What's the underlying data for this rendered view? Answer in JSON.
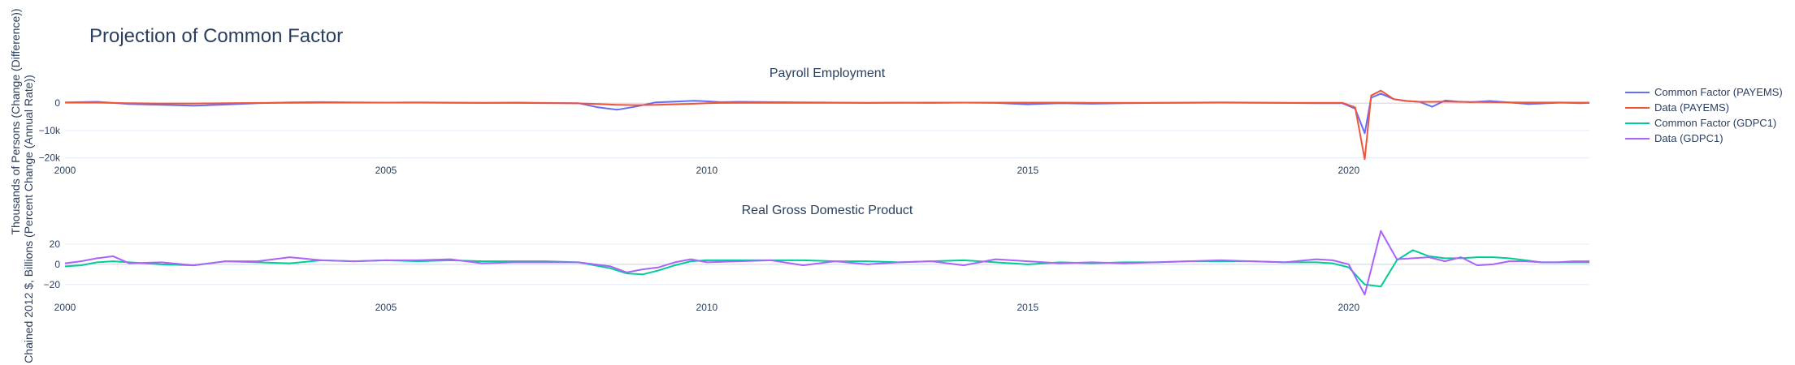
{
  "figure": {
    "title": "Projection of Common Factor"
  },
  "colors": {
    "cf_payems": "#636efa",
    "data_payems": "#ef553b",
    "cf_gdpc1": "#00cc96",
    "data_gdpc1": "#ab63fa"
  },
  "legend": {
    "placement": "right",
    "items": [
      {
        "label": "Common Factor (PAYEMS)",
        "color": "#636efa"
      },
      {
        "label": "Data (PAYEMS)",
        "color": "#ef553b"
      },
      {
        "label": "Common Factor (GDPC1)",
        "color": "#00cc96"
      },
      {
        "label": "Data (GDPC1)",
        "color": "#ab63fa"
      }
    ]
  },
  "chart_data": [
    {
      "type": "line",
      "title": "Payroll Employment",
      "ylabel": "Thousands of Persons (Change (Difference))",
      "xlabel": "",
      "xlim": [
        2000.0,
        2023.75
      ],
      "ylim": [
        -21000,
        6000
      ],
      "yticks": [
        {
          "v": 0,
          "label": "0"
        },
        {
          "v": -10000,
          "label": "−10k"
        },
        {
          "v": -20000,
          "label": "−20k"
        }
      ],
      "xticks": [
        {
          "v": 2000,
          "label": "2000"
        },
        {
          "v": 2005,
          "label": "2005"
        },
        {
          "v": 2010,
          "label": "2010"
        },
        {
          "v": 2015,
          "label": "2015"
        },
        {
          "v": 2020,
          "label": "2020"
        }
      ],
      "series": [
        {
          "name": "Common Factor (PAYEMS)",
          "color": "#636efa",
          "x": [
            2000.0,
            2000.5,
            2001.0,
            2001.5,
            2002.0,
            2002.5,
            2003.0,
            2003.5,
            2004.0,
            2004.5,
            2005.0,
            2005.5,
            2006.0,
            2006.5,
            2007.0,
            2007.5,
            2008.0,
            2008.3,
            2008.6,
            2008.9,
            2009.2,
            2009.5,
            2009.8,
            2010.0,
            2010.2,
            2010.5,
            2011.0,
            2011.5,
            2012.0,
            2012.5,
            2013.0,
            2013.5,
            2014.0,
            2014.5,
            2015.0,
            2015.5,
            2016.0,
            2016.5,
            2017.0,
            2017.5,
            2018.0,
            2018.5,
            2019.0,
            2019.5,
            2019.9,
            2020.1,
            2020.25,
            2020.35,
            2020.5,
            2020.7,
            2020.9,
            2021.1,
            2021.3,
            2021.5,
            2021.7,
            2021.9,
            2022.2,
            2022.5,
            2022.8,
            2023.0,
            2023.3,
            2023.6,
            2023.75
          ],
          "values": [
            300,
            500,
            -300,
            -600,
            -900,
            -500,
            0,
            300,
            400,
            300,
            200,
            300,
            200,
            100,
            200,
            100,
            0,
            -1500,
            -2400,
            -1200,
            300,
            600,
            900,
            700,
            400,
            500,
            400,
            300,
            200,
            100,
            200,
            100,
            200,
            100,
            -400,
            0,
            -200,
            0,
            100,
            200,
            300,
            200,
            100,
            0,
            0,
            -2000,
            -11000,
            2000,
            3500,
            1500,
            800,
            500,
            -1300,
            1000,
            600,
            400,
            800,
            300,
            -300,
            -100,
            200,
            0,
            100
          ]
        },
        {
          "name": "Data (PAYEMS)",
          "color": "#ef553b",
          "x": [
            2000.0,
            2000.5,
            2001.0,
            2001.5,
            2002.0,
            2002.5,
            2003.0,
            2003.5,
            2004.0,
            2004.5,
            2005.0,
            2005.5,
            2006.0,
            2006.5,
            2007.0,
            2007.5,
            2008.0,
            2008.3,
            2008.6,
            2008.9,
            2009.2,
            2009.5,
            2009.8,
            2010.0,
            2010.2,
            2010.5,
            2011.0,
            2011.5,
            2012.0,
            2012.5,
            2013.0,
            2013.5,
            2014.0,
            2014.5,
            2015.0,
            2015.5,
            2016.0,
            2016.5,
            2017.0,
            2017.5,
            2018.0,
            2018.5,
            2019.0,
            2019.5,
            2019.9,
            2020.1,
            2020.25,
            2020.35,
            2020.5,
            2020.7,
            2020.9,
            2021.1,
            2021.3,
            2021.5,
            2021.7,
            2021.9,
            2022.2,
            2022.5,
            2022.8,
            2023.0,
            2023.3,
            2023.6,
            2023.75
          ],
          "values": [
            200,
            200,
            0,
            -100,
            -100,
            0,
            100,
            150,
            200,
            200,
            200,
            200,
            150,
            150,
            100,
            50,
            -50,
            -300,
            -600,
            -700,
            -600,
            -400,
            -200,
            0,
            100,
            150,
            150,
            150,
            150,
            150,
            150,
            200,
            200,
            200,
            200,
            200,
            150,
            150,
            150,
            150,
            200,
            150,
            150,
            150,
            150,
            -1500,
            -20500,
            2800,
            4600,
            1500,
            800,
            500,
            500,
            600,
            500,
            450,
            400,
            300,
            250,
            250,
            250,
            200,
            200
          ]
        }
      ]
    },
    {
      "type": "line",
      "title": "Real Gross Domestic Product",
      "ylabel": "Chained 2012 $, Billions (Percent Change (Annual Rate))",
      "xlabel": "",
      "xlim": [
        2000.0,
        2023.75
      ],
      "ylim": [
        -33,
        40
      ],
      "yticks": [
        {
          "v": 20,
          "label": "20"
        },
        {
          "v": 0,
          "label": "0"
        },
        {
          "v": -20,
          "label": "−20"
        }
      ],
      "xticks": [
        {
          "v": 2000,
          "label": "2000"
        },
        {
          "v": 2005,
          "label": "2005"
        },
        {
          "v": 2010,
          "label": "2010"
        },
        {
          "v": 2015,
          "label": "2015"
        },
        {
          "v": 2020,
          "label": "2020"
        }
      ],
      "series": [
        {
          "name": "Common Factor (GDPC1)",
          "color": "#00cc96",
          "x": [
            2000.0,
            2000.25,
            2000.5,
            2000.75,
            2001.0,
            2001.5,
            2002.0,
            2002.5,
            2003.0,
            2003.5,
            2004.0,
            2004.5,
            2005.0,
            2005.5,
            2006.0,
            2006.5,
            2007.0,
            2007.5,
            2008.0,
            2008.5,
            2008.75,
            2009.0,
            2009.25,
            2009.5,
            2009.75,
            2010.0,
            2010.5,
            2011.0,
            2011.5,
            2012.0,
            2012.5,
            2013.0,
            2013.5,
            2014.0,
            2014.5,
            2015.0,
            2015.5,
            2016.0,
            2016.5,
            2017.0,
            2017.5,
            2018.0,
            2018.5,
            2019.0,
            2019.5,
            2019.75,
            2020.0,
            2020.25,
            2020.5,
            2020.75,
            2021.0,
            2021.25,
            2021.5,
            2021.75,
            2022.0,
            2022.25,
            2022.5,
            2022.75,
            2023.0,
            2023.25,
            2023.5,
            2023.75
          ],
          "values": [
            -2,
            -1,
            2,
            3,
            2,
            0,
            -1,
            3,
            2,
            1,
            4,
            3,
            4,
            3,
            4,
            3,
            3,
            3,
            2,
            -4,
            -9,
            -10,
            -6,
            -1,
            3,
            4,
            4,
            4,
            4,
            3,
            3,
            2,
            3,
            4,
            2,
            0,
            2,
            1,
            2,
            2,
            3,
            3,
            3,
            2,
            2,
            1,
            -3,
            -20,
            -22,
            4,
            14,
            8,
            6,
            6,
            7,
            7,
            6,
            4,
            2,
            2,
            2,
            2
          ]
        },
        {
          "name": "Data (GDPC1)",
          "color": "#ab63fa",
          "x": [
            2000.0,
            2000.25,
            2000.5,
            2000.75,
            2001.0,
            2001.5,
            2002.0,
            2002.5,
            2003.0,
            2003.5,
            2004.0,
            2004.5,
            2005.0,
            2005.5,
            2006.0,
            2006.5,
            2007.0,
            2007.5,
            2008.0,
            2008.5,
            2008.75,
            2009.0,
            2009.25,
            2009.5,
            2009.75,
            2010.0,
            2010.5,
            2011.0,
            2011.5,
            2012.0,
            2012.5,
            2013.0,
            2013.5,
            2014.0,
            2014.5,
            2015.0,
            2015.5,
            2016.0,
            2016.5,
            2017.0,
            2017.5,
            2018.0,
            2018.5,
            2019.0,
            2019.5,
            2019.75,
            2020.0,
            2020.25,
            2020.5,
            2020.75,
            2021.0,
            2021.25,
            2021.5,
            2021.75,
            2022.0,
            2022.25,
            2022.5,
            2022.75,
            2023.0,
            2023.25,
            2023.5,
            2023.75
          ],
          "values": [
            1,
            3,
            6,
            8,
            1,
            2,
            -1,
            3,
            3,
            7,
            4,
            3,
            4,
            4,
            5,
            1,
            2,
            2,
            2,
            -2,
            -8,
            -5,
            -3,
            2,
            5,
            2,
            3,
            4,
            -1,
            3,
            0,
            2,
            3,
            -1,
            5,
            3,
            1,
            2,
            1,
            2,
            3,
            4,
            3,
            2,
            5,
            4,
            0,
            -30,
            33,
            5,
            6,
            7,
            3,
            7,
            -1,
            0,
            3,
            3,
            2,
            2,
            3,
            3
          ]
        }
      ]
    }
  ]
}
